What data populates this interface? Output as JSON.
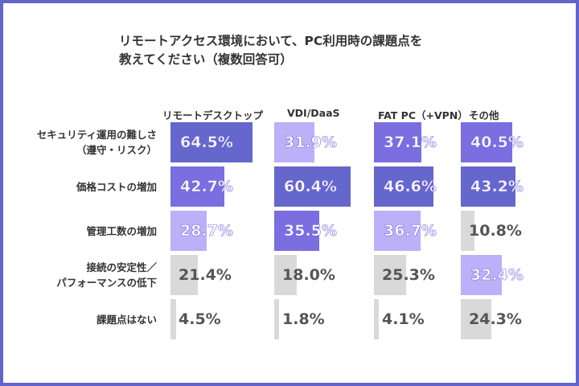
{
  "title_lines": [
    "リモートアクセス環境において、PC利用時の課題点を",
    "教えてください（複数回答可）"
  ],
  "colors": {
    "rank1": "#6567cc",
    "rank2": "#7a6ee0",
    "rank3": "#bcb0f8",
    "other": "#d9d9d9",
    "frame": "#6464cc"
  },
  "chart_data": {
    "type": "bar",
    "title": "リモートアクセス環境において、PC利用時の課題点を教えてください（複数回答可）",
    "columns": [
      "リモートデスクトップ",
      "VDI/DaaS",
      "FAT PC（+VPN）",
      "その他"
    ],
    "categories": [
      [
        "セキュリティ運用の難しさ",
        "（遵守・リスク）"
      ],
      [
        "価格コストの増加"
      ],
      [
        "管理工数の増加"
      ],
      [
        "接続の安定性／",
        "パフォーマンスの低下"
      ],
      [
        "課題点はない"
      ]
    ],
    "series": [
      {
        "name": "リモートデスクトップ",
        "values": [
          64.5,
          42.7,
          28.7,
          21.4,
          4.5
        ]
      },
      {
        "name": "VDI/DaaS",
        "values": [
          31.9,
          60.4,
          35.5,
          18.0,
          1.8
        ]
      },
      {
        "name": "FAT PC（+VPN）",
        "values": [
          37.1,
          46.6,
          36.7,
          25.3,
          4.1
        ]
      },
      {
        "name": "その他",
        "values": [
          40.5,
          43.2,
          10.8,
          32.4,
          24.3
        ]
      }
    ],
    "labels": [
      [
        "64.5%",
        "42.7%",
        "28.7%",
        "21.4%",
        "4.5%"
      ],
      [
        "31.9%",
        "60.4%",
        "35.5%",
        "18.0%",
        "1.8%"
      ],
      [
        "37.1%",
        "46.6%",
        "36.7%",
        "25.3%",
        "4.1%"
      ],
      [
        "40.5%",
        "43.2%",
        "10.8%",
        "32.4%",
        "24.3%"
      ]
    ],
    "unit": "%"
  }
}
